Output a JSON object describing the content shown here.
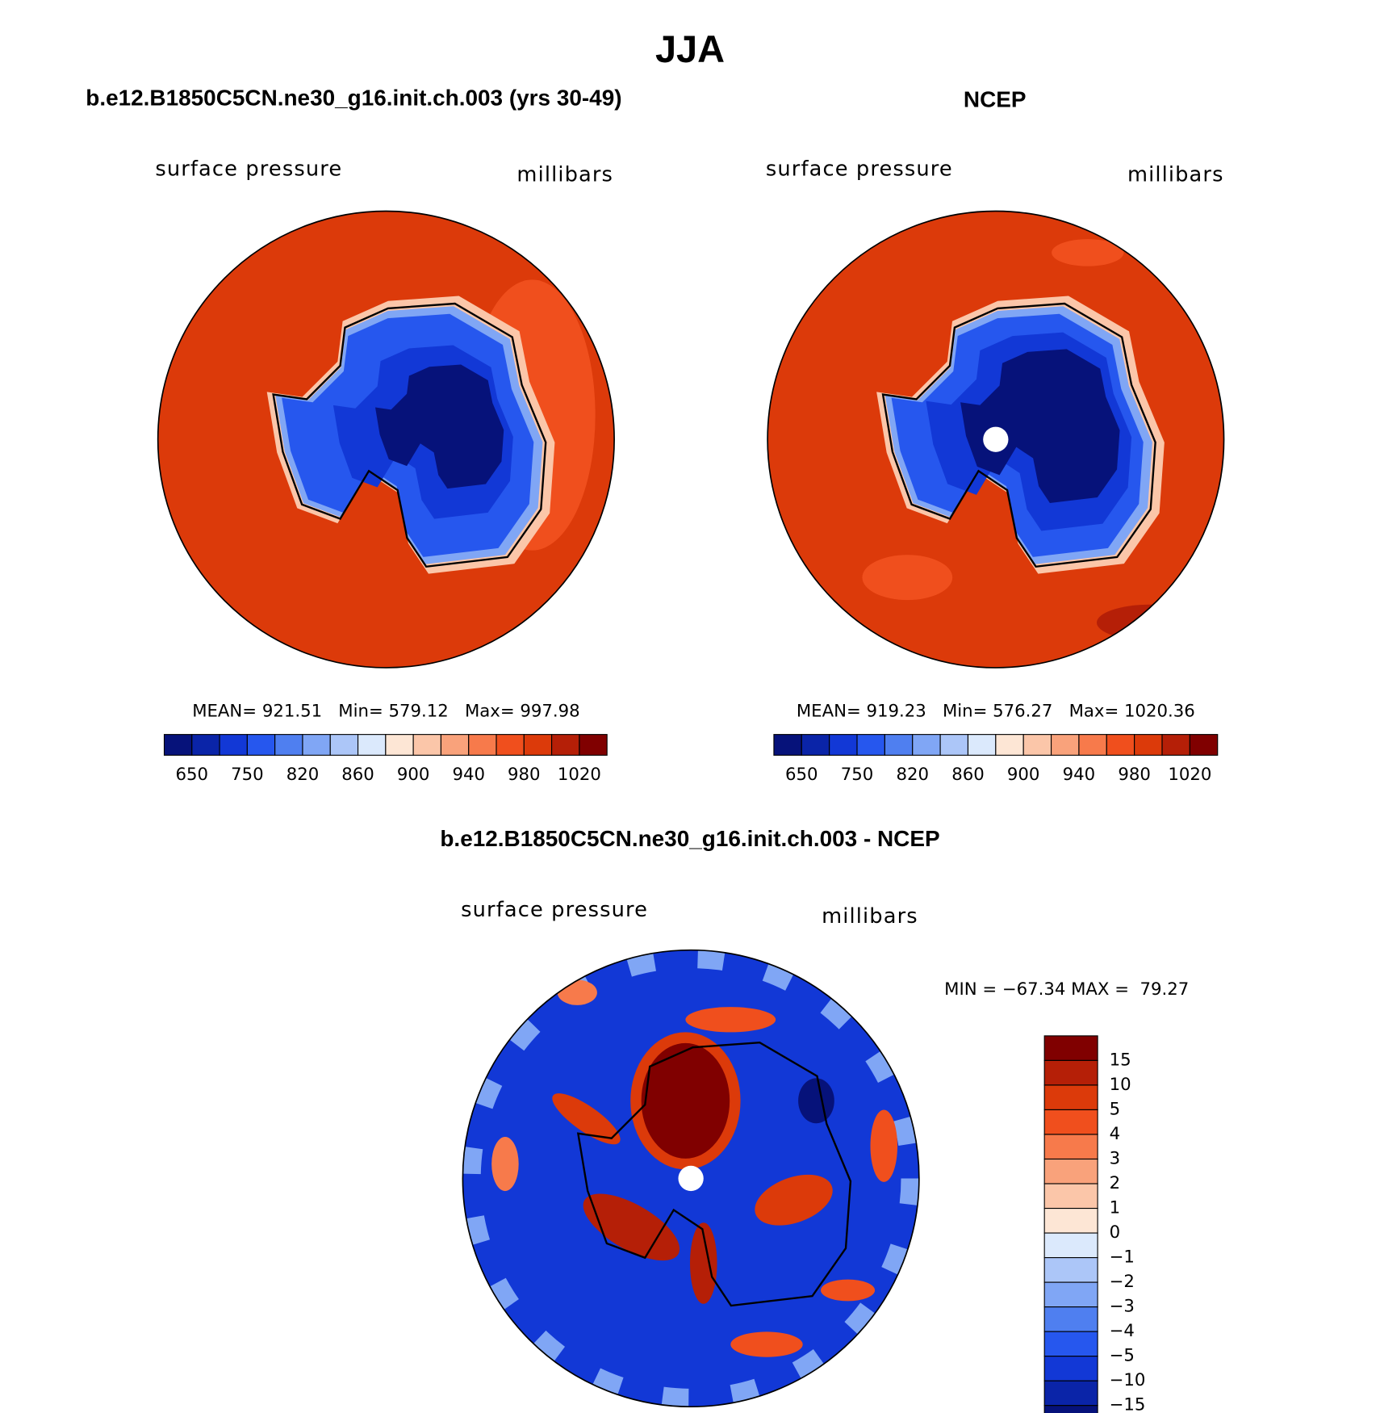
{
  "title": "JJA",
  "panels": [
    {
      "title": "b.e12.B1850C5CN.ne30_g16.init.ch.003 (yrs 30-49)",
      "left_label": "surface pressure",
      "right_label": "millibars",
      "stats": "MEAN= 921.51   Min= 579.12   Max= 997.98",
      "colorbar": {
        "labels": [
          "650",
          "750",
          "820",
          "860",
          "900",
          "940",
          "980",
          "1020"
        ],
        "colors": [
          "#06127a",
          "#0a24a8",
          "#1238d6",
          "#2657ee",
          "#4f7ff0",
          "#80a6f5",
          "#acc6f8",
          "#dbe9fc",
          "#fde6d5",
          "#fbc6a9",
          "#f9a27b",
          "#f77a4b",
          "#f04f1d",
          "#dc3a0a",
          "#b51f07",
          "#800000"
        ]
      }
    },
    {
      "title": "NCEP",
      "left_label": "surface pressure",
      "right_label": "millibars",
      "stats": "MEAN= 919.23   Min= 576.27   Max= 1020.36",
      "colorbar": {
        "labels": [
          "650",
          "750",
          "820",
          "860",
          "900",
          "940",
          "980",
          "1020"
        ],
        "colors": [
          "#06127a",
          "#0a24a8",
          "#1238d6",
          "#2657ee",
          "#4f7ff0",
          "#80a6f5",
          "#acc6f8",
          "#dbe9fc",
          "#fde6d5",
          "#fbc6a9",
          "#f9a27b",
          "#f77a4b",
          "#f04f1d",
          "#dc3a0a",
          "#b51f07",
          "#800000"
        ]
      }
    }
  ],
  "difference": {
    "title": "b.e12.B1850C5CN.ne30_g16.init.ch.003 - NCEP",
    "left_label": "surface pressure",
    "right_label": "millibars",
    "stats": "MIN = −67.34 MAX =  79.27",
    "colorbar": {
      "labels": [
        "15",
        "10",
        "5",
        "4",
        "3",
        "2",
        "1",
        "0",
        "−1",
        "−2",
        "−3",
        "−4",
        "−5",
        "−10",
        "−15"
      ],
      "colors": [
        "#800000",
        "#b51f07",
        "#dc3a0a",
        "#f04f1d",
        "#f77a4b",
        "#f9a27b",
        "#fbc6a9",
        "#fde6d5",
        "#dbe9fc",
        "#acc6f8",
        "#80a6f5",
        "#4f7ff0",
        "#2657ee",
        "#1238d6",
        "#0a24a8",
        "#06127a"
      ]
    }
  }
}
